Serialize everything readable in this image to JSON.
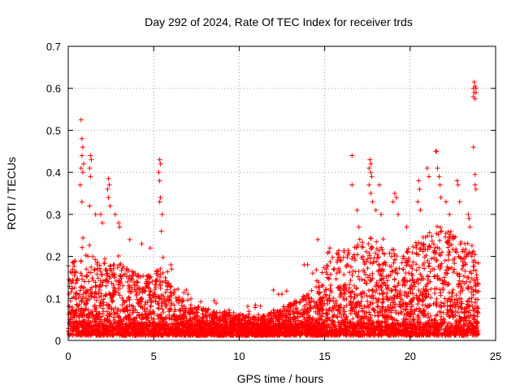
{
  "chart_data": {
    "type": "scatter",
    "title": "Day 292 of 2024, Rate Of TEC Index for receiver trds",
    "xlabel": "GPS time / hours",
    "ylabel": "ROTI / TECUs",
    "xlim": [
      0,
      25
    ],
    "ylim": [
      0,
      0.7
    ],
    "x_ticks": [
      "0",
      "5",
      "10",
      "15",
      "20",
      "25"
    ],
    "y_ticks": [
      "0",
      "0.1",
      "0.2",
      "0.3",
      "0.4",
      "0.5",
      "0.6",
      "0.7"
    ],
    "grid": true,
    "legend": "none",
    "marker": "plus",
    "color": "#ff0000",
    "series": [
      {
        "profile_x": [
          0,
          0.5,
          1,
          1.5,
          2,
          2.5,
          3,
          3.5,
          4,
          4.5,
          5,
          5.5,
          6,
          6.5,
          7,
          7.5,
          8,
          8.5,
          9,
          9.5,
          10,
          10.5,
          11,
          11.5,
          12,
          12.5,
          13,
          13.5,
          14,
          14.5,
          15,
          15.5,
          16,
          16.5,
          17,
          17.5,
          18,
          18.5,
          19,
          19.5,
          20,
          20.5,
          21,
          21.5,
          22,
          22.5,
          23,
          23.5,
          24
        ],
        "typical_max": [
          0.18,
          0.2,
          0.24,
          0.22,
          0.2,
          0.18,
          0.19,
          0.17,
          0.16,
          0.16,
          0.16,
          0.18,
          0.13,
          0.11,
          0.09,
          0.08,
          0.08,
          0.07,
          0.07,
          0.07,
          0.06,
          0.06,
          0.06,
          0.06,
          0.07,
          0.08,
          0.09,
          0.1,
          0.11,
          0.14,
          0.18,
          0.2,
          0.22,
          0.22,
          0.24,
          0.25,
          0.24,
          0.22,
          0.22,
          0.22,
          0.22,
          0.24,
          0.26,
          0.28,
          0.26,
          0.26,
          0.24,
          0.24,
          0.2
        ],
        "outliers": [
          {
            "x": 0.75,
            "y": 0.525
          },
          {
            "x": 0.8,
            "y": 0.48
          },
          {
            "x": 0.85,
            "y": 0.46
          },
          {
            "x": 0.8,
            "y": 0.44
          },
          {
            "x": 0.9,
            "y": 0.42
          },
          {
            "x": 0.75,
            "y": 0.41
          },
          {
            "x": 0.85,
            "y": 0.4
          },
          {
            "x": 0.7,
            "y": 0.37
          },
          {
            "x": 0.8,
            "y": 0.33
          },
          {
            "x": 1.3,
            "y": 0.44
          },
          {
            "x": 1.35,
            "y": 0.43
          },
          {
            "x": 1.25,
            "y": 0.41
          },
          {
            "x": 1.3,
            "y": 0.39
          },
          {
            "x": 1.25,
            "y": 0.32
          },
          {
            "x": 1.6,
            "y": 0.3
          },
          {
            "x": 1.9,
            "y": 0.3
          },
          {
            "x": 2.0,
            "y": 0.28
          },
          {
            "x": 2.35,
            "y": 0.385
          },
          {
            "x": 2.4,
            "y": 0.37
          },
          {
            "x": 2.3,
            "y": 0.36
          },
          {
            "x": 2.35,
            "y": 0.34
          },
          {
            "x": 2.45,
            "y": 0.32
          },
          {
            "x": 2.75,
            "y": 0.3
          },
          {
            "x": 2.95,
            "y": 0.28
          },
          {
            "x": 3.0,
            "y": 0.27
          },
          {
            "x": 3.6,
            "y": 0.24
          },
          {
            "x": 4.3,
            "y": 0.23
          },
          {
            "x": 4.8,
            "y": 0.22
          },
          {
            "x": 5.35,
            "y": 0.43
          },
          {
            "x": 5.4,
            "y": 0.42
          },
          {
            "x": 5.3,
            "y": 0.4
          },
          {
            "x": 5.35,
            "y": 0.38
          },
          {
            "x": 5.4,
            "y": 0.34
          },
          {
            "x": 5.35,
            "y": 0.33
          },
          {
            "x": 5.5,
            "y": 0.3
          },
          {
            "x": 5.45,
            "y": 0.26
          },
          {
            "x": 6.0,
            "y": 0.18
          },
          {
            "x": 6.05,
            "y": 0.17
          },
          {
            "x": 6.9,
            "y": 0.12
          },
          {
            "x": 7.0,
            "y": 0.11
          },
          {
            "x": 12.0,
            "y": 0.12
          },
          {
            "x": 12.3,
            "y": 0.11
          },
          {
            "x": 12.5,
            "y": 0.11
          },
          {
            "x": 13.8,
            "y": 0.18
          },
          {
            "x": 14.0,
            "y": 0.18
          },
          {
            "x": 14.3,
            "y": 0.16
          },
          {
            "x": 14.6,
            "y": 0.24
          },
          {
            "x": 15.3,
            "y": 0.22
          },
          {
            "x": 16.6,
            "y": 0.44
          },
          {
            "x": 16.6,
            "y": 0.37
          },
          {
            "x": 16.9,
            "y": 0.31
          },
          {
            "x": 17.0,
            "y": 0.27
          },
          {
            "x": 17.65,
            "y": 0.43
          },
          {
            "x": 17.7,
            "y": 0.42
          },
          {
            "x": 17.6,
            "y": 0.41
          },
          {
            "x": 17.7,
            "y": 0.4
          },
          {
            "x": 17.75,
            "y": 0.39
          },
          {
            "x": 17.6,
            "y": 0.37
          },
          {
            "x": 17.7,
            "y": 0.35
          },
          {
            "x": 17.8,
            "y": 0.33
          },
          {
            "x": 18.2,
            "y": 0.37
          },
          {
            "x": 18.3,
            "y": 0.3
          },
          {
            "x": 18.0,
            "y": 0.31
          },
          {
            "x": 19.1,
            "y": 0.35
          },
          {
            "x": 19.2,
            "y": 0.34
          },
          {
            "x": 19.0,
            "y": 0.33
          },
          {
            "x": 19.3,
            "y": 0.3
          },
          {
            "x": 19.8,
            "y": 0.27
          },
          {
            "x": 20.5,
            "y": 0.38
          },
          {
            "x": 20.55,
            "y": 0.36
          },
          {
            "x": 20.45,
            "y": 0.33
          },
          {
            "x": 20.6,
            "y": 0.31
          },
          {
            "x": 21.0,
            "y": 0.41
          },
          {
            "x": 21.1,
            "y": 0.39
          },
          {
            "x": 21.5,
            "y": 0.45
          },
          {
            "x": 21.55,
            "y": 0.45
          },
          {
            "x": 21.6,
            "y": 0.41
          },
          {
            "x": 21.7,
            "y": 0.39
          },
          {
            "x": 21.75,
            "y": 0.37
          },
          {
            "x": 21.8,
            "y": 0.34
          },
          {
            "x": 22.1,
            "y": 0.33
          },
          {
            "x": 22.3,
            "y": 0.3
          },
          {
            "x": 22.75,
            "y": 0.38
          },
          {
            "x": 22.8,
            "y": 0.37
          },
          {
            "x": 22.9,
            "y": 0.33
          },
          {
            "x": 23.4,
            "y": 0.3
          },
          {
            "x": 23.45,
            "y": 0.29
          },
          {
            "x": 23.5,
            "y": 0.27
          },
          {
            "x": 23.7,
            "y": 0.46
          },
          {
            "x": 23.8,
            "y": 0.395
          },
          {
            "x": 23.8,
            "y": 0.37
          },
          {
            "x": 23.85,
            "y": 0.36
          },
          {
            "x": 23.75,
            "y": 0.615
          },
          {
            "x": 23.8,
            "y": 0.605
          },
          {
            "x": 23.7,
            "y": 0.6
          },
          {
            "x": 23.85,
            "y": 0.6
          },
          {
            "x": 23.75,
            "y": 0.59
          },
          {
            "x": 23.7,
            "y": 0.58
          },
          {
            "x": 23.8,
            "y": 0.575
          },
          {
            "x": 23.85,
            "y": 0.59
          }
        ]
      }
    ]
  }
}
